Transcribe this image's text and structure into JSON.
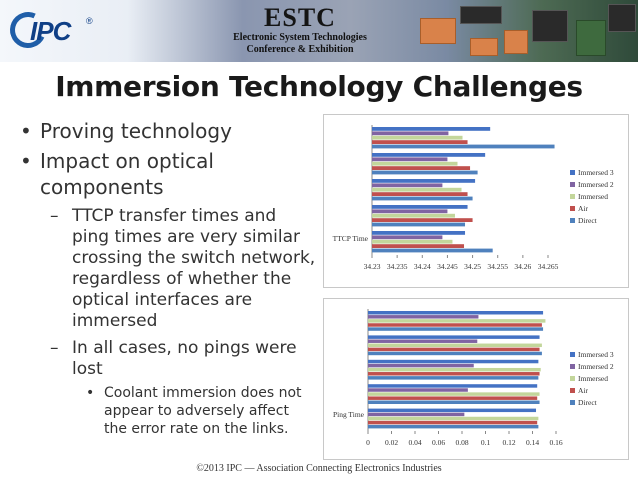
{
  "header": {
    "logo_text": "IPC",
    "logo_tm": "®",
    "banner_title": "ESTC",
    "banner_subtitle_line1": "Electronic System Technologies",
    "banner_subtitle_line2": "Conference & Exhibition"
  },
  "slide": {
    "title": "Immersion Technology Challenges",
    "bullets": [
      {
        "level": 1,
        "text": "Proving technology"
      },
      {
        "level": 1,
        "text": "Impact on optical components"
      },
      {
        "level": 2,
        "text": "TTCP transfer times and ping times are very similar crossing the switch network, regardless of whether the optical interfaces are immersed"
      },
      {
        "level": 2,
        "text": "In all cases, no pings were lost"
      },
      {
        "level": 3,
        "text": "Coolant immersion does not appear to adversely affect the error rate on the links."
      }
    ],
    "footer": "©2013 IPC — Association Connecting Electronics Industries"
  },
  "colors": {
    "Immersed 3": "#4472c4",
    "Immersed 2": "#8064a2",
    "Immersed": "#c3d69b",
    "Air": "#c0504d",
    "Direct": "#4f81bd"
  },
  "chart_data": [
    {
      "type": "bar",
      "orientation": "horizontal",
      "category_label": "TTCP Time",
      "series_names": [
        "Immersed 3",
        "Immersed 2",
        "Immersed",
        "Air",
        "Direct"
      ],
      "xlim": [
        34.23,
        34.265
      ],
      "xticks": [
        "34.23",
        "34.235",
        "34.24",
        "34.245",
        "34.25",
        "34.255",
        "34.26",
        "34.265"
      ],
      "legend_position": "right",
      "groups": [
        [
          34.2535,
          34.2452,
          34.248,
          34.249,
          34.2663
        ],
        [
          34.2525,
          34.245,
          34.247,
          34.2495,
          34.251
        ],
        [
          34.2505,
          34.244,
          34.2478,
          34.249,
          34.25
        ],
        [
          34.249,
          34.245,
          34.2465,
          34.25,
          34.2485
        ],
        [
          34.2485,
          34.244,
          34.246,
          34.2483,
          34.254
        ]
      ]
    },
    {
      "type": "bar",
      "orientation": "horizontal",
      "category_label": "Ping Time",
      "series_names": [
        "Immersed 3",
        "Immersed 2",
        "Immersed",
        "Air",
        "Direct"
      ],
      "xlim": [
        0,
        0.16
      ],
      "xticks": [
        "0",
        "0.02",
        "0.04",
        "0.06",
        "0.08",
        "0.1",
        "0.12",
        "0.14",
        "0.16"
      ],
      "legend_position": "right",
      "groups": [
        [
          0.149,
          0.094,
          0.151,
          0.148,
          0.149
        ],
        [
          0.146,
          0.093,
          0.148,
          0.146,
          0.148
        ],
        [
          0.145,
          0.09,
          0.147,
          0.146,
          0.145
        ],
        [
          0.144,
          0.085,
          0.146,
          0.144,
          0.146
        ],
        [
          0.143,
          0.082,
          0.145,
          0.144,
          0.145
        ]
      ]
    }
  ]
}
